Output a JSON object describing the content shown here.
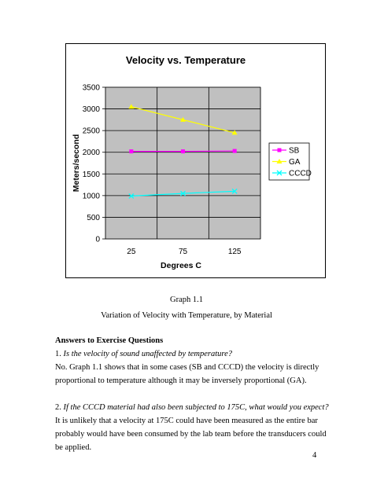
{
  "chart_data": {
    "type": "line",
    "title": "Velocity vs. Temperature",
    "xlabel": "Degrees C",
    "ylabel": "Meters/second",
    "categories": [
      "25",
      "75",
      "125"
    ],
    "ylim": [
      0,
      3500
    ],
    "yticks": [
      0,
      500,
      1000,
      1500,
      2000,
      2500,
      3000,
      3500
    ],
    "grid": true,
    "legend_position": "right",
    "series": [
      {
        "name": "SB",
        "values": [
          2020,
          2020,
          2030
        ],
        "color": "#ff00ff",
        "marker": "square"
      },
      {
        "name": "GA",
        "values": [
          3050,
          2750,
          2450
        ],
        "color": "#ffff00",
        "marker": "triangle"
      },
      {
        "name": "CCCD",
        "values": [
          990,
          1050,
          1100
        ],
        "color": "#00ffff",
        "marker": "x"
      }
    ]
  },
  "caption": {
    "line1": "Graph 1.1",
    "line2": "Variation of Velocity with Temperature, by Material"
  },
  "answers": {
    "heading": "Answers to Exercise Questions",
    "q1_number": "1.",
    "q1_question": "Is the velocity of sound unaffected by temperature?",
    "q1_answer": "No. Graph 1.1 shows that in some cases (SB and CCCD) the velocity is directly proportional to temperature although it may be inversely proportional (GA).",
    "q2_number": "2.",
    "q2_question": "If the CCCD material had also been subjected to 175C, what would you expect?",
    "q2_answer": "It is unlikely that a velocity at 175C could have been measured as the entire bar probably would have been consumed by the lab team before the transducers could be applied."
  },
  "page_number": "4"
}
